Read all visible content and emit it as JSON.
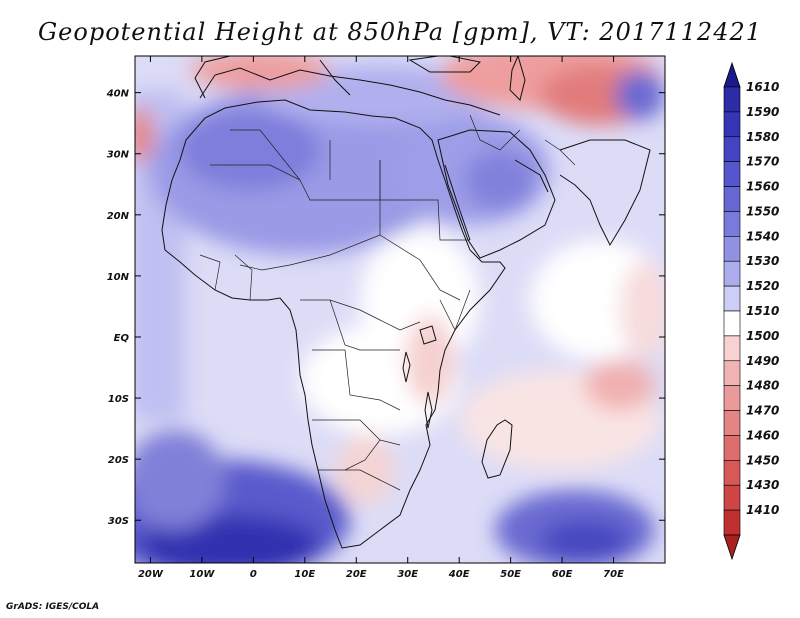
{
  "title": "Geopotential Height at 850hPa [gpm], VT: 2017112421",
  "credit": "GrADS: IGES/COLA",
  "map": {
    "lon_range": [
      -23,
      80
    ],
    "lat_range": [
      -37,
      46
    ],
    "lon_ticks": [
      {
        "value": -20,
        "label": "20W"
      },
      {
        "value": -10,
        "label": "10W"
      },
      {
        "value": 0,
        "label": "0"
      },
      {
        "value": 10,
        "label": "10E"
      },
      {
        "value": 20,
        "label": "20E"
      },
      {
        "value": 30,
        "label": "30E"
      },
      {
        "value": 40,
        "label": "40E"
      },
      {
        "value": 50,
        "label": "50E"
      },
      {
        "value": 60,
        "label": "60E"
      },
      {
        "value": 70,
        "label": "70E"
      }
    ],
    "lat_ticks": [
      {
        "value": 40,
        "label": "40N"
      },
      {
        "value": 30,
        "label": "30N"
      },
      {
        "value": 20,
        "label": "20N"
      },
      {
        "value": 10,
        "label": "10N"
      },
      {
        "value": 0,
        "label": "EQ"
      },
      {
        "value": -10,
        "label": "10S"
      },
      {
        "value": -20,
        "label": "20S"
      },
      {
        "value": -30,
        "label": "30S"
      }
    ]
  },
  "colorbar": {
    "levels": [
      {
        "label": "1610",
        "color": "#2c2ca8"
      },
      {
        "label": "1590",
        "color": "#3535b8"
      },
      {
        "label": "1580",
        "color": "#4444c2"
      },
      {
        "label": "1570",
        "color": "#5555cc"
      },
      {
        "label": "1560",
        "color": "#6767d4"
      },
      {
        "label": "1550",
        "color": "#7a7adc"
      },
      {
        "label": "1540",
        "color": "#9191e4"
      },
      {
        "label": "1530",
        "color": "#adadee"
      },
      {
        "label": "1520",
        "color": "#cdcdf7"
      },
      {
        "label": "1510",
        "color": "#ffffff"
      },
      {
        "label": "1500",
        "color": "#f8d2d2"
      },
      {
        "label": "1490",
        "color": "#f1b4b4"
      },
      {
        "label": "1480",
        "color": "#ea9a9a"
      },
      {
        "label": "1470",
        "color": "#e48484"
      },
      {
        "label": "1460",
        "color": "#de6e6e"
      },
      {
        "label": "1450",
        "color": "#d85858"
      },
      {
        "label": "1430",
        "color": "#cf4444"
      },
      {
        "label": "1410",
        "color": "#c03030"
      }
    ],
    "top_arrow_color": "#1a1a8c",
    "bottom_arrow_color": "#a82020"
  }
}
